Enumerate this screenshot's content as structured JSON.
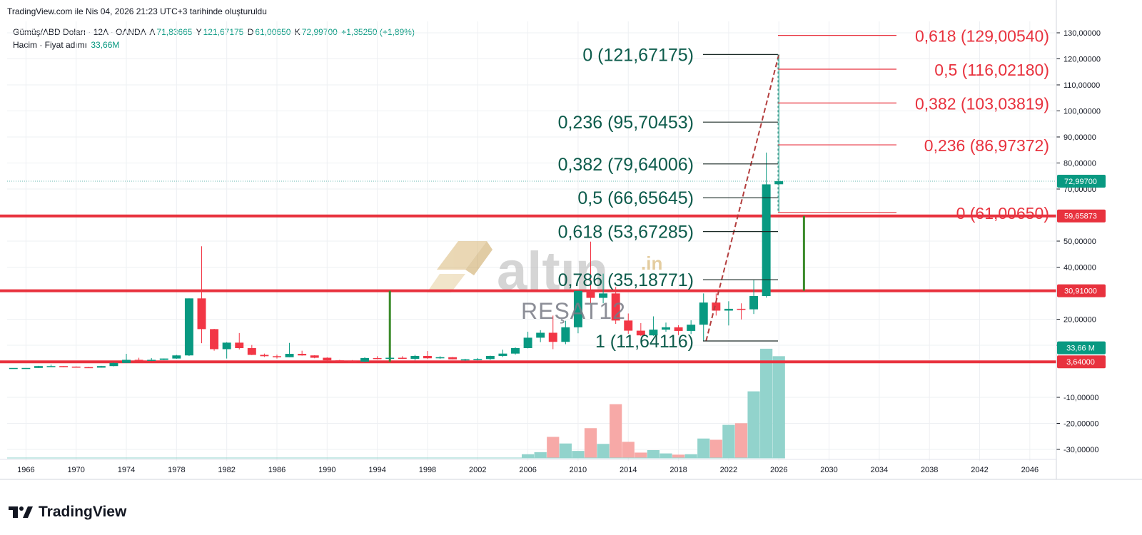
{
  "header": {
    "created_line": "TradingView.com ile Nis 04, 2026 21:23 UTC+3 tarihinde oluşturuldu"
  },
  "legend": {
    "symbol": "Gümüş/ABD Doları · 12A · OANDA",
    "open_key": "A",
    "open_val": "71,83665",
    "high_key": "Y",
    "high_val": "121,67175",
    "low_key": "D",
    "low_val": "61,00650",
    "close_key": "K",
    "close_val": "72,99700",
    "change": "+1,35250 (+1,89%)",
    "volume_label": "Hacim · Fiyat adımı",
    "volume_val": "33,66M"
  },
  "brand": {
    "name": "TradingView",
    "icon": "tradingview-logo-icon"
  },
  "watermark": {
    "logo_text": "altın",
    "logo_suffix": ".in",
    "author": "REŞAT12"
  },
  "colors": {
    "up": "#089981",
    "down": "#f23645",
    "vol_up": "#92d3cc",
    "vol_down": "#f7a9a7",
    "fib_green": "#0c5b4b",
    "fib_red": "#e8323e",
    "hline": "#e8323e",
    "vline": "#3a8a2a",
    "grid": "#eef0f3"
  },
  "chart_data": {
    "type": "candlestick",
    "title": "Gümüş/ABD Doları · 12A · OANDA",
    "x_ticks": [
      "1966",
      "1970",
      "1974",
      "1978",
      "1982",
      "1986",
      "1990",
      "1994",
      "1998",
      "2002",
      "2006",
      "2010",
      "2014",
      "2018",
      "2022",
      "2026",
      "2030",
      "2034",
      "2038",
      "2042",
      "2046"
    ],
    "y_ticks": [
      "130,00000",
      "120,00000",
      "110,00000",
      "100,00000",
      "90,00000",
      "80,00000",
      "70,00000",
      "50,00000",
      "40,00000",
      "20,00000",
      "10,00000",
      "-10,00000",
      "-20,00000",
      "-30,00000"
    ],
    "y_range": [
      -33,
      133
    ],
    "x_range": [
      1964.5,
      2048
    ],
    "candles": [
      {
        "year": 1965,
        "o": 1.29,
        "h": 1.29,
        "l": 1.29,
        "c": 1.29
      },
      {
        "year": 1966,
        "o": 1.29,
        "h": 1.29,
        "l": 1.29,
        "c": 1.29
      },
      {
        "year": 1967,
        "o": 1.29,
        "h": 2.1,
        "l": 1.29,
        "c": 2.0
      },
      {
        "year": 1968,
        "o": 2.0,
        "h": 2.56,
        "l": 1.8,
        "c": 2.0
      },
      {
        "year": 1969,
        "o": 2.0,
        "h": 2.0,
        "l": 1.6,
        "c": 1.8
      },
      {
        "year": 1970,
        "o": 1.8,
        "h": 1.9,
        "l": 1.5,
        "c": 1.6
      },
      {
        "year": 1971,
        "o": 1.6,
        "h": 1.7,
        "l": 1.3,
        "c": 1.4
      },
      {
        "year": 1972,
        "o": 1.4,
        "h": 2.1,
        "l": 1.4,
        "c": 2.0
      },
      {
        "year": 1973,
        "o": 2.0,
        "h": 3.4,
        "l": 1.9,
        "c": 3.2
      },
      {
        "year": 1974,
        "o": 3.2,
        "h": 6.7,
        "l": 3.2,
        "c": 4.4
      },
      {
        "year": 1975,
        "o": 4.4,
        "h": 5.2,
        "l": 3.9,
        "c": 4.2
      },
      {
        "year": 1976,
        "o": 4.2,
        "h": 5.1,
        "l": 3.9,
        "c": 4.4
      },
      {
        "year": 1977,
        "o": 4.4,
        "h": 4.9,
        "l": 4.3,
        "c": 4.9
      },
      {
        "year": 1978,
        "o": 4.9,
        "h": 6.3,
        "l": 4.8,
        "c": 6.1
      },
      {
        "year": 1979,
        "o": 6.1,
        "h": 28.0,
        "l": 5.9,
        "c": 28.0
      },
      {
        "year": 1980,
        "o": 28.0,
        "h": 48.0,
        "l": 10.8,
        "c": 16.2
      },
      {
        "year": 1981,
        "o": 16.2,
        "h": 16.3,
        "l": 7.9,
        "c": 8.5
      },
      {
        "year": 1982,
        "o": 8.5,
        "h": 11.2,
        "l": 4.9,
        "c": 11.0
      },
      {
        "year": 1983,
        "o": 11.0,
        "h": 14.7,
        "l": 8.4,
        "c": 8.9
      },
      {
        "year": 1984,
        "o": 8.9,
        "h": 10.1,
        "l": 6.2,
        "c": 6.3
      },
      {
        "year": 1985,
        "o": 6.3,
        "h": 6.8,
        "l": 5.5,
        "c": 5.8
      },
      {
        "year": 1986,
        "o": 5.8,
        "h": 6.4,
        "l": 4.9,
        "c": 5.4
      },
      {
        "year": 1987,
        "o": 5.4,
        "h": 10.9,
        "l": 5.4,
        "c": 6.7
      },
      {
        "year": 1988,
        "o": 6.7,
        "h": 7.9,
        "l": 6.0,
        "c": 6.1
      },
      {
        "year": 1989,
        "o": 6.1,
        "h": 6.2,
        "l": 5.0,
        "c": 5.2
      },
      {
        "year": 1990,
        "o": 5.2,
        "h": 5.4,
        "l": 3.9,
        "c": 4.2
      },
      {
        "year": 1991,
        "o": 4.2,
        "h": 4.4,
        "l": 3.5,
        "c": 3.9
      },
      {
        "year": 1992,
        "o": 3.9,
        "h": 4.3,
        "l": 3.6,
        "c": 3.7
      },
      {
        "year": 1993,
        "o": 3.7,
        "h": 5.4,
        "l": 3.5,
        "c": 5.1
      },
      {
        "year": 1994,
        "o": 5.1,
        "h": 5.8,
        "l": 4.6,
        "c": 4.9
      },
      {
        "year": 1995,
        "o": 4.9,
        "h": 6.1,
        "l": 4.4,
        "c": 5.2
      },
      {
        "year": 1996,
        "o": 5.2,
        "h": 5.8,
        "l": 4.7,
        "c": 4.8
      },
      {
        "year": 1997,
        "o": 4.8,
        "h": 6.3,
        "l": 4.2,
        "c": 5.9
      },
      {
        "year": 1998,
        "o": 5.9,
        "h": 7.8,
        "l": 4.7,
        "c": 5.0
      },
      {
        "year": 1999,
        "o": 5.0,
        "h": 5.8,
        "l": 4.8,
        "c": 5.4
      },
      {
        "year": 2000,
        "o": 5.4,
        "h": 5.5,
        "l": 4.6,
        "c": 4.6
      },
      {
        "year": 2001,
        "o": 4.6,
        "h": 4.8,
        "l": 4.0,
        "c": 4.6
      },
      {
        "year": 2002,
        "o": 4.6,
        "h": 5.1,
        "l": 4.2,
        "c": 4.7
      },
      {
        "year": 2003,
        "o": 4.7,
        "h": 6.0,
        "l": 4.4,
        "c": 5.9
      },
      {
        "year": 2004,
        "o": 5.9,
        "h": 8.3,
        "l": 5.5,
        "c": 6.8
      },
      {
        "year": 2005,
        "o": 6.8,
        "h": 9.2,
        "l": 6.4,
        "c": 8.9
      },
      {
        "year": 2006,
        "o": 8.9,
        "h": 15.2,
        "l": 8.8,
        "c": 12.9
      },
      {
        "year": 2007,
        "o": 12.9,
        "h": 15.8,
        "l": 11.2,
        "c": 14.8
      },
      {
        "year": 2008,
        "o": 14.8,
        "h": 21.4,
        "l": 8.5,
        "c": 11.3
      },
      {
        "year": 2009,
        "o": 11.3,
        "h": 19.4,
        "l": 10.4,
        "c": 16.9
      },
      {
        "year": 2010,
        "o": 16.9,
        "h": 30.9,
        "l": 14.6,
        "c": 30.9
      },
      {
        "year": 2011,
        "o": 30.9,
        "h": 49.8,
        "l": 26.1,
        "c": 28.2
      },
      {
        "year": 2012,
        "o": 28.2,
        "h": 37.5,
        "l": 26.1,
        "c": 29.9
      },
      {
        "year": 2013,
        "o": 29.9,
        "h": 32.4,
        "l": 18.2,
        "c": 19.5
      },
      {
        "year": 2014,
        "o": 19.5,
        "h": 22.2,
        "l": 14.4,
        "c": 15.6
      },
      {
        "year": 2015,
        "o": 15.6,
        "h": 18.5,
        "l": 13.6,
        "c": 13.8
      },
      {
        "year": 2016,
        "o": 13.8,
        "h": 21.1,
        "l": 13.6,
        "c": 16.0
      },
      {
        "year": 2017,
        "o": 16.0,
        "h": 18.7,
        "l": 15.2,
        "c": 16.9
      },
      {
        "year": 2018,
        "o": 16.9,
        "h": 17.7,
        "l": 13.9,
        "c": 15.5
      },
      {
        "year": 2019,
        "o": 15.5,
        "h": 19.6,
        "l": 14.3,
        "c": 17.9
      },
      {
        "year": 2020,
        "o": 17.9,
        "h": 29.9,
        "l": 11.6,
        "c": 26.4
      },
      {
        "year": 2021,
        "o": 26.4,
        "h": 29.9,
        "l": 21.4,
        "c": 23.3
      },
      {
        "year": 2022,
        "o": 23.3,
        "h": 26.9,
        "l": 17.6,
        "c": 24.0
      },
      {
        "year": 2023,
        "o": 24.0,
        "h": 26.1,
        "l": 19.9,
        "c": 23.8
      },
      {
        "year": 2024,
        "o": 23.8,
        "h": 35.0,
        "l": 22.0,
        "c": 28.9
      },
      {
        "year": 2025,
        "o": 28.9,
        "h": 84.0,
        "l": 28.3,
        "c": 71.8
      },
      {
        "year": 2026,
        "o": 71.84,
        "h": 121.67,
        "l": 61.01,
        "c": 73.0
      }
    ],
    "volume": [
      {
        "year": 2006,
        "v": 0.9,
        "up": true
      },
      {
        "year": 2007,
        "v": 1.4,
        "up": true
      },
      {
        "year": 2008,
        "v": 5.1,
        "up": false
      },
      {
        "year": 2009,
        "v": 3.5,
        "up": true
      },
      {
        "year": 2010,
        "v": 1.7,
        "up": true
      },
      {
        "year": 2011,
        "v": 7.2,
        "up": false
      },
      {
        "year": 2012,
        "v": 3.4,
        "up": true
      },
      {
        "year": 2013,
        "v": 13.0,
        "up": false
      },
      {
        "year": 2014,
        "v": 3.9,
        "up": false
      },
      {
        "year": 2015,
        "v": 1.3,
        "up": false
      },
      {
        "year": 2016,
        "v": 1.9,
        "up": true
      },
      {
        "year": 2017,
        "v": 1.1,
        "up": true
      },
      {
        "year": 2018,
        "v": 0.8,
        "up": false
      },
      {
        "year": 2019,
        "v": 0.9,
        "up": true
      },
      {
        "year": 2020,
        "v": 4.7,
        "up": true
      },
      {
        "year": 2021,
        "v": 4.4,
        "up": false
      },
      {
        "year": 2022,
        "v": 8.0,
        "up": true
      },
      {
        "year": 2023,
        "v": 8.4,
        "up": false
      },
      {
        "year": 2024,
        "v": 16.1,
        "up": true
      },
      {
        "year": 2025,
        "v": 26.4,
        "up": true
      },
      {
        "year": 2026,
        "v": 24.6,
        "up": true
      }
    ],
    "fib_retracement": {
      "from": {
        "year": 2020.2,
        "price": 11.64116
      },
      "to": {
        "year": 2026,
        "price": 121.67175
      },
      "levels": [
        {
          "label": "0 (121,67175)",
          "price": 121.67175
        },
        {
          "label": "0,236 (95,70453)",
          "price": 95.70453
        },
        {
          "label": "0,382 (79,64006)",
          "price": 79.64006
        },
        {
          "label": "0,5 (66,65645)",
          "price": 66.65645
        },
        {
          "label": "0,618 (53,67285)",
          "price": 53.67285
        },
        {
          "label": "0,786 (35,18771)",
          "price": 35.18771
        },
        {
          "label": "1 (11,64116)",
          "price": 11.64116
        }
      ]
    },
    "fib_extension": {
      "levels": [
        {
          "label": "0,618 (129,00540)",
          "price": 129.0054
        },
        {
          "label": "0,5 (116,02180)",
          "price": 116.0218
        },
        {
          "label": "0,382 (103,03819)",
          "price": 103.03819
        },
        {
          "label": "0,236 (86,97372)",
          "price": 86.97372
        },
        {
          "label": "0 (61,00650)",
          "price": 61.0065
        }
      ]
    },
    "horizontal_lines": [
      {
        "price": 59.65873,
        "label": "59,65873"
      },
      {
        "price": 30.91,
        "label": "30,91000"
      },
      {
        "price": 3.64,
        "label": "3,64000"
      }
    ],
    "vertical_markers": [
      {
        "year": 1995,
        "from": 3.64,
        "to": 30.91
      },
      {
        "year": 2028,
        "from": 30.91,
        "to": 59.65873
      }
    ],
    "price_tags": [
      {
        "price": 72.997,
        "label": "72,99700",
        "kind": "last"
      },
      {
        "price": 9.0,
        "label": "33,66 M",
        "kind": "volume"
      }
    ]
  }
}
